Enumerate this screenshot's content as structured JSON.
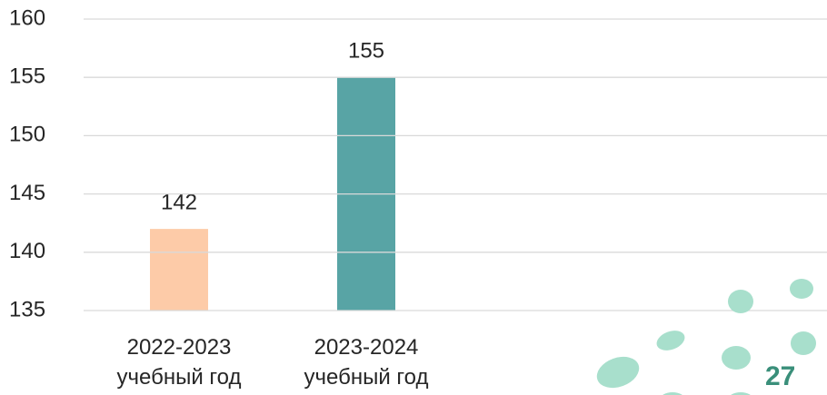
{
  "chart_data": {
    "type": "bar",
    "categories": [
      "2022-2023 учебный год",
      "2023-2024 учебный год"
    ],
    "values": [
      142,
      155
    ],
    "colors": [
      "#fdcba8",
      "#58a4a5"
    ],
    "ylim": [
      135,
      160
    ],
    "yticks": [
      135,
      140,
      145,
      150,
      155,
      160
    ],
    "grid": true
  },
  "page_number": "27"
}
